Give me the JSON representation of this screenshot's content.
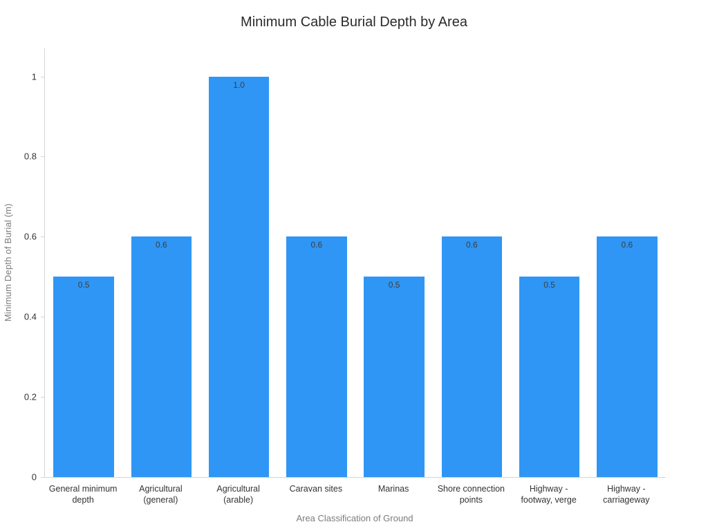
{
  "chart_data": {
    "type": "bar",
    "title": "Minimum Cable Burial Depth by Area",
    "xlabel": "Area Classification of Ground",
    "ylabel": "Minimum Depth of Burial (m)",
    "categories": [
      "General minimum depth",
      "Agricultural (general)",
      "Agricultural (arable)",
      "Caravan sites",
      "Marinas",
      "Shore connection points",
      "Highway - footway, verge",
      "Highway - carriageway"
    ],
    "values": [
      0.5,
      0.6,
      1.0,
      0.6,
      0.5,
      0.6,
      0.5,
      0.6
    ],
    "bar_labels": [
      "0.5",
      "0.6",
      "1.0",
      "0.6",
      "0.5",
      "0.6",
      "0.5",
      "0.6"
    ],
    "yticks": [
      0,
      0.2,
      0.4,
      0.6,
      0.8,
      1
    ],
    "ytick_labels": [
      "0",
      "0.2",
      "0.4",
      "0.6",
      "0.8",
      "1"
    ],
    "ylim": [
      0,
      1.07
    ],
    "grid": false,
    "legend": false,
    "bar_color": "#2F96F5",
    "label_color": "#3d3d3d",
    "axis_color": "#d4d4d4"
  }
}
